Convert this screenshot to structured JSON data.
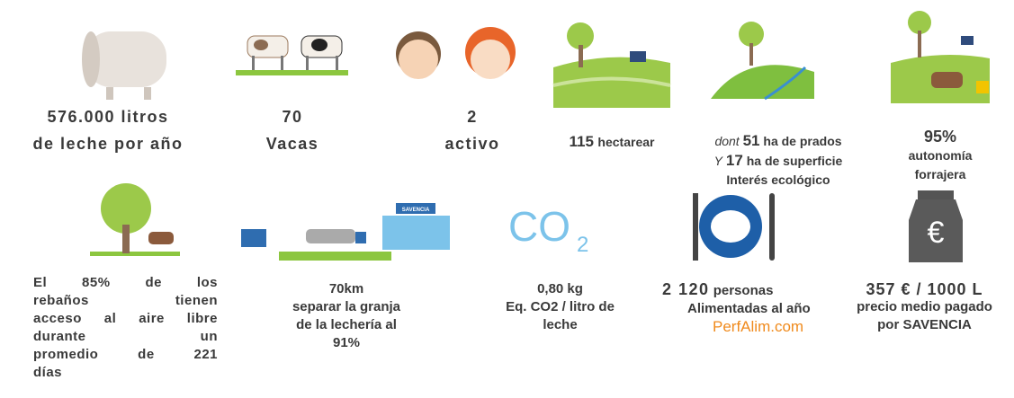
{
  "row1": [
    {
      "lines": [
        "576.000 litros",
        "de leche por año"
      ]
    },
    {
      "lines": [
        "70",
        "Vacas"
      ]
    },
    {
      "lines": [
        "2",
        "activo"
      ]
    },
    {
      "value": "115",
      "unit": "hectarear"
    },
    {
      "line1": {
        "prefix": "dont",
        "value": "51",
        "text": "ha de prados"
      },
      "line2": {
        "prefix": "Y",
        "value": "17",
        "text": "ha de superficie"
      },
      "line3": "Interés ecológico"
    },
    {
      "lines": [
        "95%",
        "autonomía",
        "forrajera"
      ]
    }
  ],
  "row2": [
    {
      "lines": [
        "El 85% de los",
        "rebaños tienen",
        "acceso al aire libre",
        "durante un",
        "promedio de 221",
        "días"
      ]
    },
    {
      "lines": [
        "70km",
        "separar la granja",
        "de la lechería al",
        "91%"
      ],
      "sign": "SAVENCIA"
    },
    {
      "lines": [
        "0,80 kg",
        "Eq. CO2 / litro de",
        "leche"
      ],
      "icon": {
        "main": "CO",
        "sub": "2"
      }
    },
    {
      "value": "2 120",
      "unit": "personas",
      "line2": "Alimentadas al año",
      "logo": "PerfAlim.com"
    },
    {
      "lines": [
        "357 € / 1000 L",
        "precio medio pagado",
        "por SAVENCIA"
      ],
      "icon": "€"
    }
  ]
}
